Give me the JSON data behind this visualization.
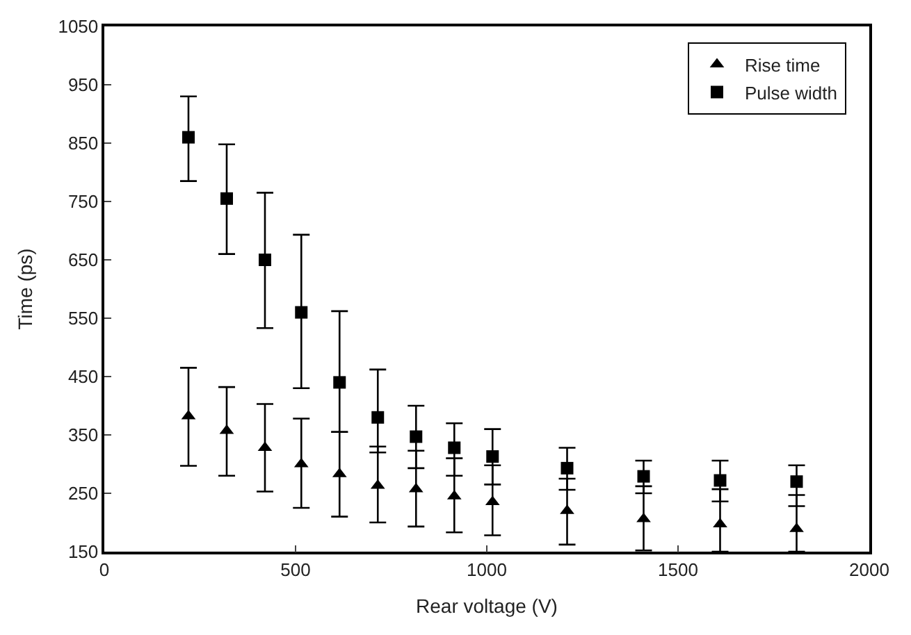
{
  "chart_data": {
    "type": "scatter",
    "xlabel": "Rear voltage (V)",
    "ylabel": "Time (ps)",
    "xlim": [
      0,
      2000
    ],
    "xticks": [
      0,
      500,
      1000,
      1500,
      2000
    ],
    "ylim": [
      150,
      1050
    ],
    "yticks": [
      150,
      250,
      350,
      450,
      550,
      650,
      750,
      850,
      950,
      1050
    ],
    "legend": "top right",
    "series": [
      {
        "name": "Rise time",
        "color": "#000000",
        "marker": "triangle",
        "x": [
          220,
          320,
          420,
          515,
          615,
          715,
          815,
          915,
          1015,
          1210,
          1410,
          1610,
          1810
        ],
        "values": [
          382,
          357,
          328,
          300,
          283,
          263,
          257,
          245,
          235,
          220,
          206,
          197,
          189
        ],
        "errors": [
          [
            297,
            465
          ],
          [
            280,
            432
          ],
          [
            253,
            403
          ],
          [
            225,
            378
          ],
          [
            210,
            355
          ],
          [
            200,
            330
          ],
          [
            193,
            323
          ],
          [
            183,
            310
          ],
          [
            178,
            298
          ],
          [
            162,
            275
          ],
          [
            152,
            262
          ],
          [
            150,
            257
          ],
          [
            150,
            247
          ]
        ]
      },
      {
        "name": "Pulse width",
        "color": "#000000",
        "marker": "square",
        "x": [
          220,
          320,
          420,
          515,
          615,
          715,
          815,
          915,
          1015,
          1210,
          1410,
          1610,
          1810
        ],
        "values": [
          860,
          755,
          650,
          560,
          440,
          380,
          347,
          328,
          313,
          293,
          279,
          272,
          270
        ],
        "errors": [
          [
            785,
            930
          ],
          [
            660,
            848
          ],
          [
            533,
            765
          ],
          [
            430,
            693
          ],
          [
            355,
            562
          ],
          [
            320,
            462
          ],
          [
            293,
            400
          ],
          [
            280,
            370
          ],
          [
            265,
            360
          ],
          [
            256,
            328
          ],
          [
            250,
            306
          ],
          [
            236,
            306
          ],
          [
            228,
            298
          ]
        ]
      }
    ]
  }
}
